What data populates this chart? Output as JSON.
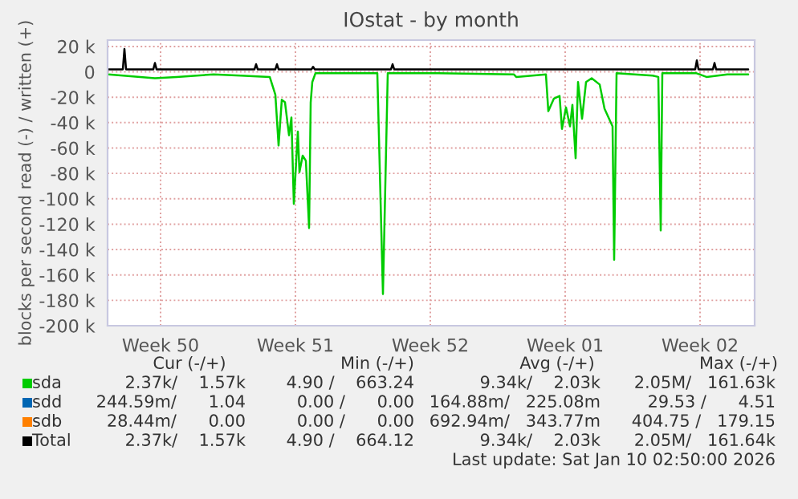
{
  "chart_data": {
    "type": "line",
    "title": "IOstat - by month",
    "ylabel": "blocks per second read (-) / written (+)",
    "xlim": [
      "2025-12-08T22:00",
      "2026-01-11T12:00"
    ],
    "xticks": [
      {
        "value": "2025-12-11T16:00",
        "label": "Week 50"
      },
      {
        "value": "2025-12-18T16:00",
        "label": "Week 51"
      },
      {
        "value": "2025-12-25T16:00",
        "label": "Week 52"
      },
      {
        "value": "2026-01-01T16:00",
        "label": "Week 01"
      },
      {
        "value": "2026-01-08T16:00",
        "label": "Week 02"
      }
    ],
    "ylim": [
      -200000,
      25000
    ],
    "yticks": [
      {
        "value": 20000,
        "label": "20 k"
      },
      0,
      {
        "value": -20000,
        "label": "-20 k"
      },
      {
        "value": -40000,
        "label": "-40 k"
      },
      {
        "value": -60000,
        "label": "-60 k"
      },
      {
        "value": -80000,
        "label": "-80 k"
      },
      {
        "value": -100000,
        "label": "-100 k"
      },
      {
        "value": -120000,
        "label": "-120 k"
      },
      {
        "value": -140000,
        "label": "-140 k"
      },
      {
        "value": -160000,
        "label": "-160 k"
      },
      {
        "value": -180000,
        "label": "-180 k"
      },
      {
        "value": -200000,
        "label": "-200 k"
      }
    ],
    "grid": true,
    "legend": "bottom",
    "marker": "none",
    "line_style": "solid",
    "series": [
      {
        "name": "sda",
        "color": "#00cc00",
        "x": [
          "2025-12-08T23:00",
          "2025-12-11T09:00",
          "2025-12-12T12:00",
          "2025-12-14T10:00",
          "2025-12-15T20:00",
          "2025-12-17T08:00",
          "2025-12-17T15:00",
          "2025-12-17T19:00",
          "2025-12-17T23:00",
          "2025-12-18T03:00",
          "2025-12-18T08:00",
          "2025-12-18T11:00",
          "2025-12-18T14:00",
          "2025-12-18T19:00",
          "2025-12-18T21:00",
          "2025-12-19T01:00",
          "2025-12-19T05:00",
          "2025-12-19T09:00",
          "2025-12-19T11:00",
          "2025-12-19T13:00",
          "2025-12-19T17:00",
          "2025-12-20T13:00",
          "2025-12-22T19:00",
          "2025-12-22T22:00",
          "2025-12-23T05:00",
          "2025-12-23T11:00",
          "2025-12-26T02:00",
          "2025-12-30T00:00",
          "2025-12-30T03:00",
          "2025-12-31T16:00",
          "2025-12-31T19:00",
          "2026-01-01T02:00",
          "2026-01-01T09:00",
          "2026-01-01T12:00",
          "2026-01-01T17:00",
          "2026-01-01T22:00",
          "2026-01-02T01:00",
          "2026-01-02T05:00",
          "2026-01-02T08:00",
          "2026-01-02T13:00",
          "2026-01-02T18:00",
          "2026-01-03T01:00",
          "2026-01-03T11:00",
          "2026-01-03T17:00",
          "2026-01-04T03:00",
          "2026-01-04T05:00",
          "2026-01-04T08:00",
          "2026-01-06T05:00",
          "2026-01-06T12:00",
          "2026-01-06T15:00",
          "2026-01-06T17:00",
          "2026-01-08T11:00",
          "2026-01-09T00:00",
          "2026-01-10T02:00",
          "2026-01-11T04:00"
        ],
        "values": [
          -2000,
          -5000,
          -4000,
          -2000,
          -3000,
          -4000,
          -18000,
          -58000,
          -22000,
          -24000,
          -50000,
          -36000,
          -104000,
          -47000,
          -79000,
          -66000,
          -70000,
          -123000,
          -24000,
          -8000,
          -1000,
          -1000,
          -1000,
          -1000,
          -175000,
          -1000,
          -1000,
          -2000,
          -4000,
          -2000,
          -31000,
          -21000,
          -19000,
          -45000,
          -28000,
          -43000,
          -26000,
          -68000,
          -8000,
          -37000,
          -8000,
          -5000,
          -10000,
          -29000,
          -43000,
          -148000,
          -1000,
          -3000,
          -4000,
          -125000,
          -1000,
          -1000,
          -4000,
          -2000,
          -2000
        ]
      },
      {
        "name": "sdd",
        "color": "#0066b3"
      },
      {
        "name": "sdb",
        "color": "#ff8000"
      },
      {
        "name": "Total",
        "color": "#000000",
        "x": [
          "2025-12-08T23:00",
          "2025-12-09T17:00",
          "2025-12-09T19:00",
          "2025-12-09T21:00",
          "2025-12-11T07:00",
          "2025-12-11T09:00",
          "2025-12-11T11:00",
          "2025-12-16T13:00",
          "2025-12-16T15:00",
          "2025-12-16T17:00",
          "2025-12-17T15:00",
          "2025-12-17T17:00",
          "2025-12-17T19:00",
          "2025-12-19T12:00",
          "2025-12-19T14:00",
          "2025-12-19T16:00",
          "2025-12-23T15:00",
          "2025-12-23T17:00",
          "2025-12-23T19:00",
          "2026-01-08T10:00",
          "2026-01-08T12:00",
          "2026-01-08T14:00",
          "2026-01-09T08:00",
          "2026-01-09T10:00",
          "2026-01-09T12:00",
          "2026-01-11T04:00"
        ],
        "values": [
          2000,
          2000,
          18000,
          2000,
          2000,
          7000,
          2000,
          2000,
          6000,
          2000,
          2000,
          6000,
          2000,
          2000,
          4000,
          2000,
          2000,
          6000,
          2000,
          2000,
          9000,
          2000,
          2000,
          7000,
          2000,
          2000
        ]
      }
    ],
    "annotations": [
      "Cur (-/+)",
      "Min (-/+)",
      "Avg (-/+)",
      "Max (-/+)",
      "2.37k/    1.57k",
      "4.90 /    663.24",
      "9.34k/    2.03k",
      "2.05M/   161.63k",
      "244.59m/      1.04",
      "0.00 /      0.00",
      "164.88m/   225.08m",
      "29.53 /      4.51",
      "28.44m/      0.00",
      "0.00 /      0.00",
      "692.94m/   343.77m",
      "404.75 /   179.15",
      "2.37k/    1.57k",
      "4.90 /    664.12",
      "9.34k/    2.03k",
      "2.05M/   161.64k",
      "Last update: Sat Jan 10 02:50:00 2026"
    ]
  }
}
